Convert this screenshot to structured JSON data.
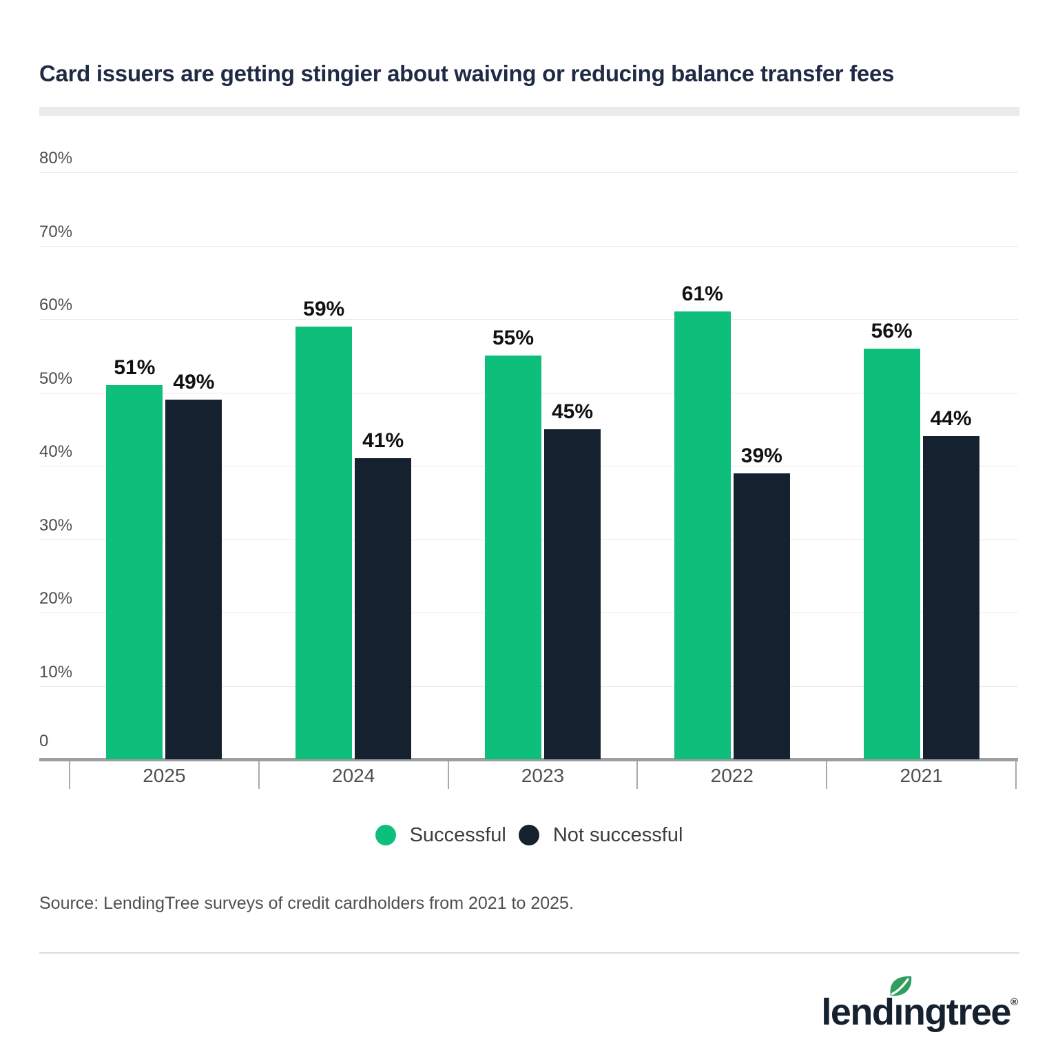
{
  "title": "Card issuers are getting stingier about waiving or reducing balance transfer fees",
  "source": "Source: LendingTree surveys of credit cardholders from 2021 to 2025.",
  "colors": {
    "successful_green": "#0EBE7B",
    "not_successful_navy": "#16212F",
    "title_navy": "#1F2A44",
    "gridline_gray": "#E9E9E9",
    "axis_gray": "#9C9EA0",
    "label_gray": "#4F4F4F",
    "leaf_green": "#2F9E5F"
  },
  "chart_data": {
    "type": "bar",
    "title": "Card issuers are getting stingier about waiving or reducing balance transfer fees",
    "categories": [
      "2025",
      "2024",
      "2023",
      "2022",
      "2021"
    ],
    "series": [
      {
        "name": "Successful",
        "color": "#0EBE7B",
        "values": [
          51,
          59,
          55,
          61,
          56
        ]
      },
      {
        "name": "Not successful",
        "color": "#16212F",
        "values": [
          49,
          41,
          45,
          39,
          44
        ]
      }
    ],
    "value_suffix": "%",
    "yticks": [
      "80%",
      "70%",
      "60%",
      "50%",
      "40%",
      "30%",
      "20%",
      "10%",
      "0"
    ],
    "ylim": [
      0,
      80
    ],
    "grid": true,
    "legend_position": "bottom"
  },
  "legend": [
    {
      "label": "Successful",
      "color": "#0EBE7B"
    },
    {
      "label": "Not successful",
      "color": "#16212F"
    }
  ],
  "logo": {
    "text": "lendingtree",
    "registered": "®"
  }
}
